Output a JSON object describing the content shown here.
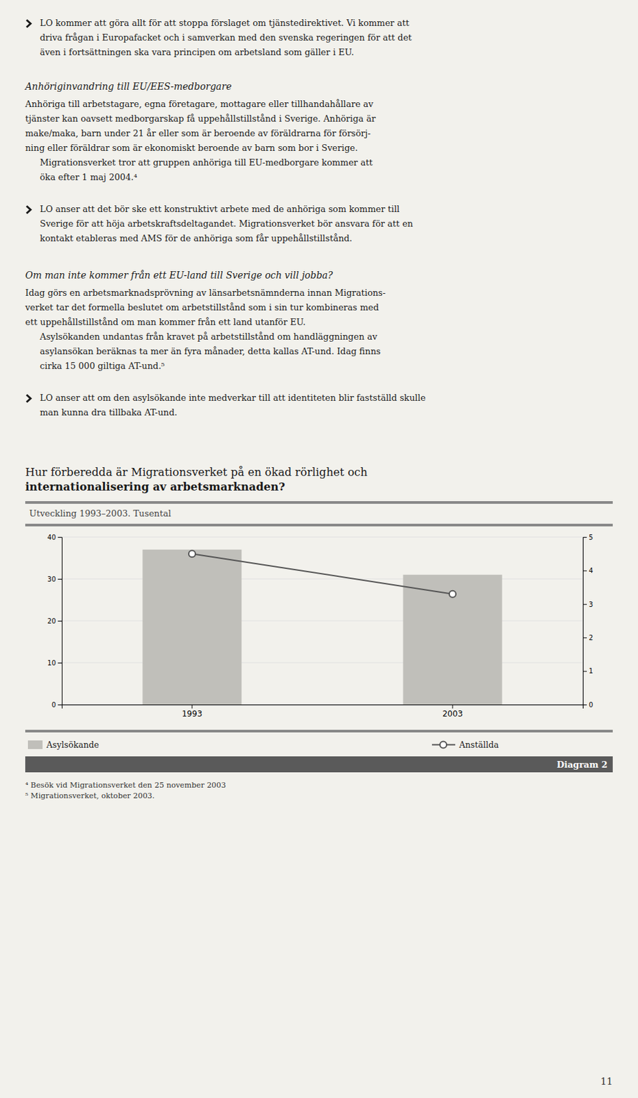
{
  "chart_data": {
    "type": "bar",
    "title": "Diagram 2",
    "subtitle": "Utveckling 1993–2003. Tusental",
    "categories": [
      "1993",
      "2003"
    ],
    "series": [
      {
        "name": "Asylsökande",
        "type": "bar",
        "color": "#c0bfba",
        "values": [
          37.0,
          31.0
        ]
      },
      {
        "name": "Anställda",
        "type": "line",
        "color": "#555555",
        "marker": "circle",
        "axis": "y2",
        "values": [
          4.5,
          3.3
        ]
      }
    ],
    "ylim": [
      0,
      40
    ],
    "yticks": [
      0,
      10,
      20,
      30,
      40
    ],
    "y2lim": [
      0,
      5
    ],
    "y2ticks": [
      0,
      1,
      2,
      3,
      4,
      5
    ],
    "grid": true,
    "legend": "bottom"
  },
  "page": {
    "blocks": [
      {
        "type": "bullet",
        "lines": [
          "LO kommer att göra allt för att stoppa förslaget om tjänstedirektivet. Vi kommer att",
          "driva frågan i Europafacket och i samverkan med den svenska regeringen för att det",
          "även i fortsättningen ska vara principen om arbetsland som gäller i EU."
        ]
      },
      {
        "type": "heading",
        "lines": [
          "Anhöriginvandring till EU/EES-medborgare"
        ]
      },
      {
        "type": "paragraph",
        "lines": [
          "Anhöriga till arbetstagare, egna företagare, mottagare eller tillhandahållare av",
          "tjänster kan oavsett medborgarskap få uppehållstillstånd i Sverige. Anhöriga är",
          "make/maka, barn under 21 år eller som är beroende av föräldrarna för försörj-",
          "ning eller föräldrar som är ekonomiskt beroende av barn som bor i Sverige."
        ]
      },
      {
        "type": "indented",
        "lines": [
          "Migrationsverket tror att gruppen anhöriga till EU-medborgare kommer att",
          "öka efter 1 maj 2004.⁴"
        ]
      },
      {
        "type": "bullet",
        "lines": [
          "LO anser att det bör ske ett konstruktivt arbete med de anhöriga som kommer till",
          "Sverige för att höja arbetskraftsdeltagandet. Migrationsverket bör ansvara för att en",
          "kontakt etableras med AMS för de anhöriga som får uppehållstillstånd."
        ]
      },
      {
        "type": "heading",
        "lines": [
          "Om man inte kommer från ett EU-land till Sverige och vill jobba?"
        ]
      },
      {
        "type": "paragraph",
        "lines": [
          "Idag görs en arbetsmarknadsprövning av länsarbetsnämnderna innan Migrations-",
          "verket tar det formella beslutet om arbetstillstånd som i sin tur kombineras med",
          "ett uppehållstillstånd om man kommer från ett land utanför EU."
        ]
      },
      {
        "type": "indented",
        "lines": [
          "Asylsökanden undantas från kravet på arbetstillstånd om handläggningen av",
          "asylansökan beräknas ta mer än fyra månader, detta kallas AT-und. Idag finns",
          "cirka 15 000 giltiga AT-und.⁵"
        ]
      },
      {
        "type": "bullet",
        "lines": [
          "LO anser att om den asylsökande inte medverkar till att identiteten blir fastställd skulle",
          "man kunna dra tillbaka AT-und."
        ]
      }
    ],
    "section_heading": [
      "Hur förberedda är Migrationsverket på en ökad rörlighet och",
      "internationalisering av arbetsmarknaden?"
    ],
    "footnotes": [
      "⁴  Besök vid Migrationsverket den 25 november 2003",
      "⁵  Migrationsverket, oktober 2003."
    ],
    "page_number": "11"
  }
}
